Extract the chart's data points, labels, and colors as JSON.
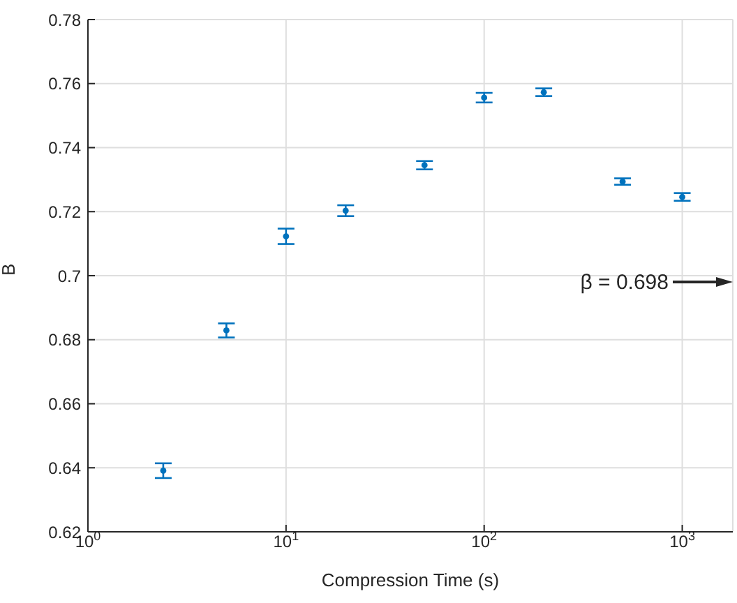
{
  "chart_data": {
    "type": "scatter",
    "xlabel": "Compression Time (s)",
    "ylabel": "B",
    "x": [
      2.4,
      5,
      10,
      20,
      50,
      100,
      200,
      500,
      1000
    ],
    "series": [
      {
        "color": "#0072bd",
        "values": [
          0.6391,
          0.6829,
          0.7123,
          0.7203,
          0.7345,
          0.7556,
          0.7573,
          0.7294,
          0.7246
        ],
        "errors": [
          0.0023,
          0.0022,
          0.0024,
          0.0017,
          0.0013,
          0.0015,
          0.0012,
          0.001,
          0.0012
        ]
      }
    ],
    "xlim": [
      1,
      1800
    ],
    "ylim": [
      0.62,
      0.78
    ],
    "xticks": [
      {
        "value": 1,
        "label": "10$^{0}$"
      },
      {
        "value": 10,
        "label": "10$^{1}$"
      },
      {
        "value": 100,
        "label": "10$^{2}$"
      },
      {
        "value": 1000,
        "label": "10$^{3}$"
      }
    ],
    "yticks": [
      0.62,
      0.64,
      0.66,
      0.68,
      0.7,
      0.72,
      0.74,
      0.76,
      0.78
    ],
    "log": "x",
    "grid": true,
    "marker": "circle",
    "annotations": [
      "β = 0.698"
    ]
  }
}
